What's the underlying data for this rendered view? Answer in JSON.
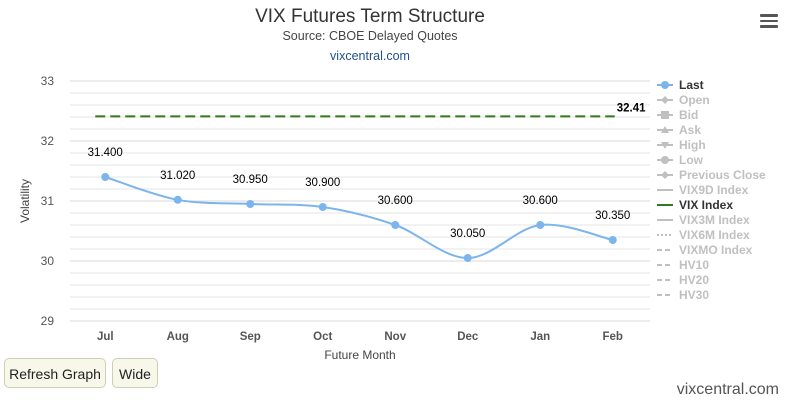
{
  "header": {
    "title": "VIX Futures Term Structure",
    "subtitle": "Source: CBOE Delayed Quotes",
    "link": "vixcentral.com"
  },
  "menu": {
    "icon": "hamburger-menu-icon"
  },
  "buttons": {
    "refresh_label": "Refresh Graph",
    "wide_label": "Wide"
  },
  "footer": {
    "site": "vixcentral.com"
  },
  "colors": {
    "last": "#7cb5ec",
    "vix": "#2f7a1c",
    "muted": "#c0c0c0",
    "grid": "#e6e6e6"
  },
  "chart_data": {
    "type": "line",
    "title": "VIX Futures Term Structure",
    "subtitle": "Source: CBOE Delayed Quotes",
    "xlabel": "Future Month",
    "ylabel": "Volatility",
    "categories": [
      "Jul",
      "Aug",
      "Sep",
      "Oct",
      "Nov",
      "Dec",
      "Jan",
      "Feb"
    ],
    "ylim": [
      29,
      33
    ],
    "yticks": [
      "29",
      "30",
      "31",
      "32",
      "33"
    ],
    "grid": true,
    "legend_position": "right",
    "series": [
      {
        "name": "Last",
        "values": [
          31.4,
          31.02,
          30.95,
          30.9,
          30.6,
          30.05,
          30.6,
          30.35
        ],
        "labels": [
          "31.400",
          "31.020",
          "30.950",
          "30.900",
          "30.600",
          "30.050",
          "30.600",
          "30.350"
        ]
      },
      {
        "name": "VIX Index",
        "value": 32.41,
        "label": "32.41"
      }
    ],
    "legend": [
      {
        "name": "Last",
        "active": true,
        "symbol": "circle"
      },
      {
        "name": "Open",
        "active": false,
        "symbol": "diamond"
      },
      {
        "name": "Bid",
        "active": false,
        "symbol": "square"
      },
      {
        "name": "Ask",
        "active": false,
        "symbol": "triangle"
      },
      {
        "name": "High",
        "active": false,
        "symbol": "triangle-down"
      },
      {
        "name": "Low",
        "active": false,
        "symbol": "circle"
      },
      {
        "name": "Previous Close",
        "active": false,
        "symbol": "diamond"
      },
      {
        "name": "VIX9D Index",
        "active": false,
        "symbol": "solid-line"
      },
      {
        "name": "VIX Index",
        "active": true,
        "symbol": "solid-line"
      },
      {
        "name": "VIX3M Index",
        "active": false,
        "symbol": "solid-line"
      },
      {
        "name": "VIX6M Index",
        "active": false,
        "symbol": "dotted-line"
      },
      {
        "name": "VIXMO Index",
        "active": false,
        "symbol": "dashed-line"
      },
      {
        "name": "HV10",
        "active": false,
        "symbol": "dashed-line"
      },
      {
        "name": "HV20",
        "active": false,
        "symbol": "dashed-line"
      },
      {
        "name": "HV30",
        "active": false,
        "symbol": "dashed-line"
      }
    ]
  }
}
